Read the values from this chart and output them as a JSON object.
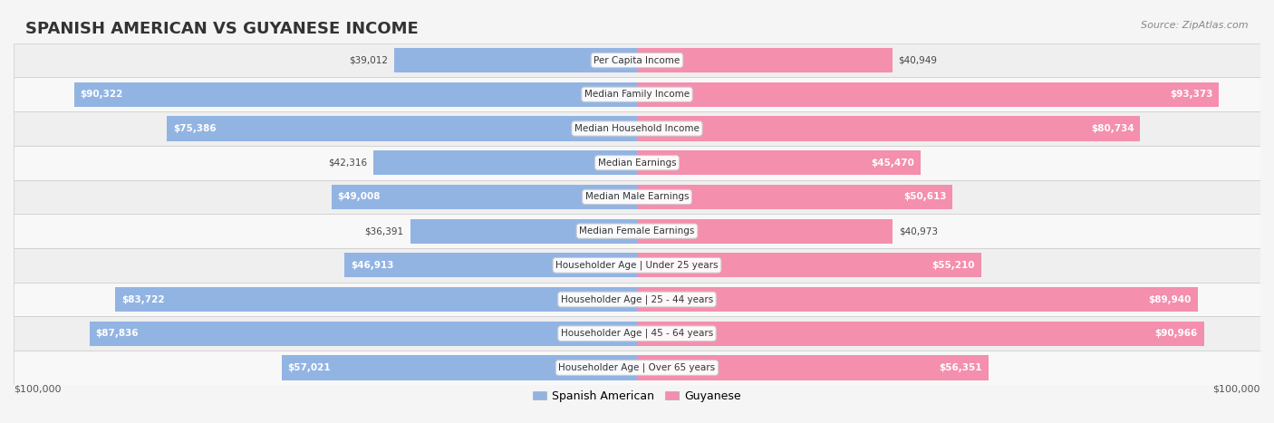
{
  "title": "SPANISH AMERICAN VS GUYANESE INCOME",
  "source": "Source: ZipAtlas.com",
  "categories": [
    "Per Capita Income",
    "Median Family Income",
    "Median Household Income",
    "Median Earnings",
    "Median Male Earnings",
    "Median Female Earnings",
    "Householder Age | Under 25 years",
    "Householder Age | 25 - 44 years",
    "Householder Age | 45 - 64 years",
    "Householder Age | Over 65 years"
  ],
  "spanish_american": [
    39012,
    90322,
    75386,
    42316,
    49008,
    36391,
    46913,
    83722,
    87836,
    57021
  ],
  "guyanese": [
    40949,
    93373,
    80734,
    45470,
    50613,
    40973,
    55210,
    89940,
    90966,
    56351
  ],
  "max_val": 100000,
  "color_spanish": "#92b4e3",
  "color_guyanese": "#f48fae",
  "color_spanish_dark": "#5b8ec9",
  "color_guyanese_dark": "#e85c85",
  "bg_color": "#f5f5f5",
  "row_bg_even": "#ececec",
  "row_bg_odd": "#f5f5f5",
  "label_bg": "#ffffff",
  "xlabel_left": "$100,000",
  "xlabel_right": "$100,000",
  "legend_spanish": "Spanish American",
  "legend_guyanese": "Guyanese"
}
